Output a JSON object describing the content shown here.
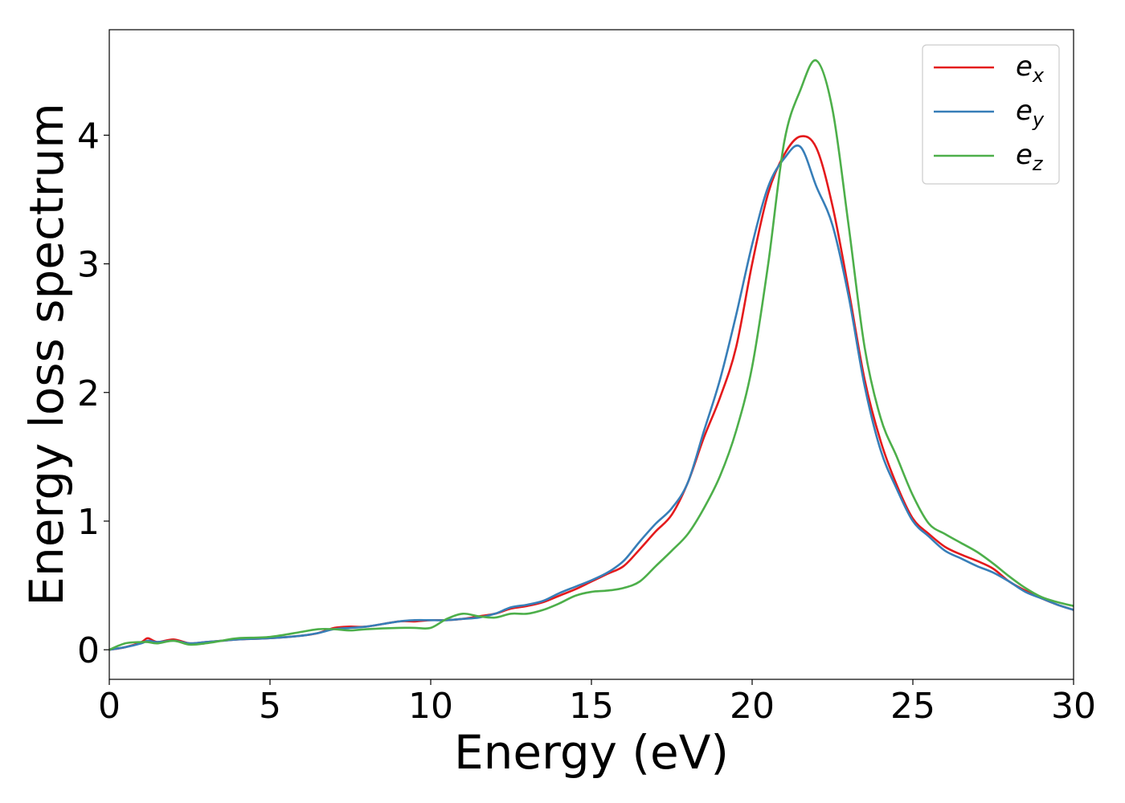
{
  "chart_data": {
    "type": "line",
    "xlabel": "Energy (eV)",
    "ylabel": "Energy loss spectrum",
    "xlim": [
      0,
      30
    ],
    "ylim": [
      -0.23,
      4.82
    ],
    "xticks": [
      0,
      5,
      10,
      15,
      20,
      25,
      30
    ],
    "xtick_labels": [
      "0",
      "5",
      "10",
      "15",
      "20",
      "25",
      "30"
    ],
    "yticks": [
      0,
      1,
      2,
      3,
      4
    ],
    "ytick_labels": [
      "0",
      "1",
      "2",
      "3",
      "4"
    ],
    "grid": false,
    "legend_position": "top-right",
    "x": [
      0,
      0.5,
      1,
      1.2,
      1.5,
      2,
      2.5,
      3,
      3.5,
      4,
      5,
      6,
      6.5,
      7,
      7.5,
      8,
      9,
      9.5,
      10,
      10.5,
      11,
      11.5,
      12,
      12.5,
      13,
      13.5,
      14,
      14.5,
      15,
      15.5,
      16,
      16.5,
      17,
      17.5,
      18,
      18.5,
      19,
      19.5,
      20,
      20.5,
      21,
      21.5,
      22,
      22.5,
      23,
      23.5,
      24,
      24.5,
      25,
      25.5,
      26,
      26.5,
      27,
      27.5,
      28,
      28.5,
      29,
      29.5,
      30
    ],
    "series": [
      {
        "name_base": "e",
        "name_sub": "x",
        "color": "#e41a1c",
        "values": [
          0,
          0.02,
          0.06,
          0.09,
          0.06,
          0.08,
          0.05,
          0.06,
          0.07,
          0.08,
          0.09,
          0.11,
          0.13,
          0.17,
          0.18,
          0.18,
          0.22,
          0.22,
          0.23,
          0.23,
          0.24,
          0.26,
          0.28,
          0.32,
          0.34,
          0.37,
          0.42,
          0.47,
          0.53,
          0.59,
          0.65,
          0.78,
          0.92,
          1.05,
          1.3,
          1.65,
          1.96,
          2.35,
          3.0,
          3.55,
          3.85,
          3.99,
          3.9,
          3.45,
          2.8,
          2.1,
          1.62,
          1.28,
          1.02,
          0.9,
          0.8,
          0.74,
          0.69,
          0.63,
          0.53,
          0.46,
          0.4,
          0.35,
          0.31
        ]
      },
      {
        "name_base": "e",
        "name_sub": "y",
        "color": "#377eb8",
        "values": [
          0,
          0.02,
          0.05,
          0.07,
          0.06,
          0.07,
          0.05,
          0.06,
          0.07,
          0.08,
          0.09,
          0.11,
          0.13,
          0.16,
          0.17,
          0.18,
          0.22,
          0.23,
          0.23,
          0.23,
          0.24,
          0.25,
          0.28,
          0.33,
          0.35,
          0.38,
          0.44,
          0.49,
          0.54,
          0.6,
          0.69,
          0.84,
          0.98,
          1.1,
          1.3,
          1.7,
          2.1,
          2.6,
          3.15,
          3.6,
          3.82,
          3.91,
          3.6,
          3.3,
          2.75,
          2.05,
          1.55,
          1.25,
          1.0,
          0.88,
          0.77,
          0.71,
          0.65,
          0.6,
          0.53,
          0.45,
          0.4,
          0.35,
          0.31
        ]
      },
      {
        "name_base": "e",
        "name_sub": "z",
        "color": "#4daf4a",
        "values": [
          0,
          0.05,
          0.06,
          0.06,
          0.05,
          0.07,
          0.04,
          0.05,
          0.07,
          0.09,
          0.1,
          0.14,
          0.16,
          0.16,
          0.15,
          0.16,
          0.17,
          0.17,
          0.17,
          0.24,
          0.28,
          0.26,
          0.25,
          0.28,
          0.28,
          0.31,
          0.36,
          0.42,
          0.45,
          0.46,
          0.48,
          0.53,
          0.65,
          0.77,
          0.9,
          1.1,
          1.35,
          1.7,
          2.2,
          3.0,
          3.95,
          4.35,
          4.58,
          4.2,
          3.3,
          2.35,
          1.8,
          1.5,
          1.2,
          0.98,
          0.9,
          0.83,
          0.76,
          0.67,
          0.57,
          0.48,
          0.41,
          0.37,
          0.34
        ]
      }
    ]
  }
}
